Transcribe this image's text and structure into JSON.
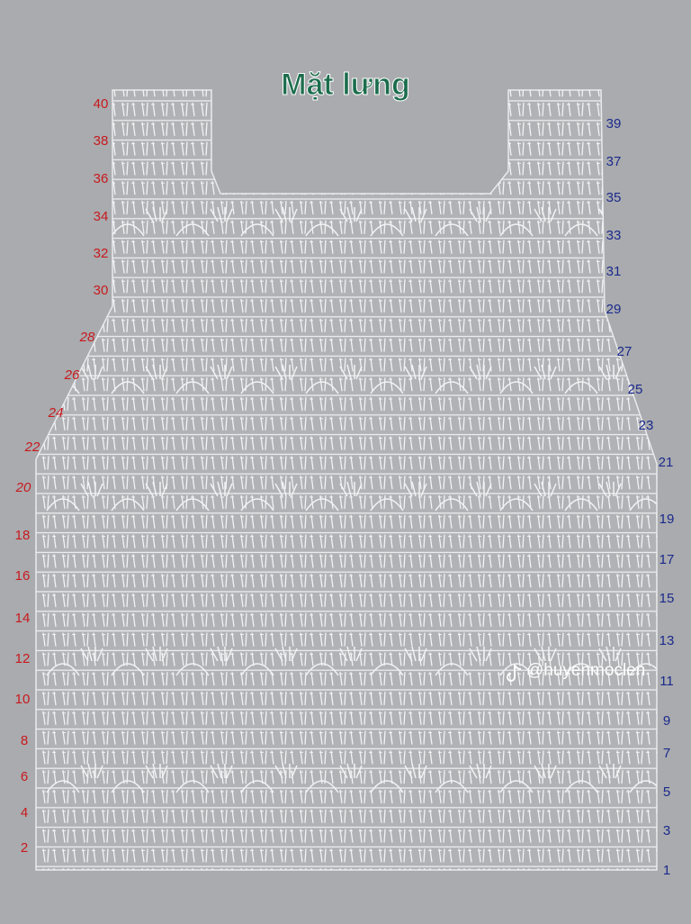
{
  "header": {
    "title": "Mặt lưng"
  },
  "left_rows": [
    40,
    38,
    36,
    34,
    32,
    30,
    28,
    26,
    24,
    22,
    20,
    18,
    16,
    14,
    12,
    10,
    8,
    6,
    4,
    2
  ],
  "right_rows": [
    39,
    37,
    35,
    33,
    31,
    29,
    27,
    25,
    23,
    21,
    19,
    17,
    15,
    13,
    11,
    9,
    7,
    5,
    3,
    1
  ],
  "watermark": "@huyenmoclen"
}
